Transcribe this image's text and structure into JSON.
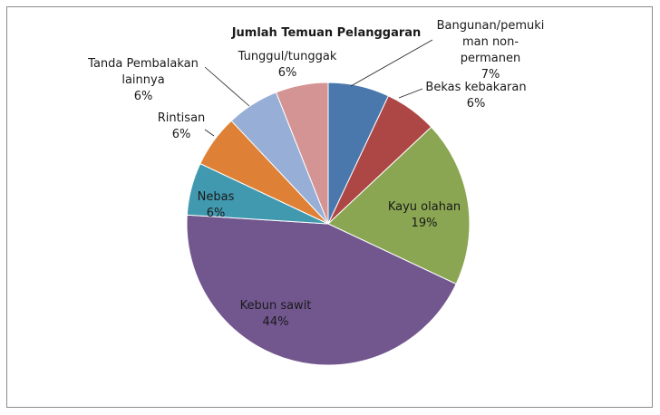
{
  "chart_data": {
    "type": "pie",
    "title": "Jumlah Temuan Pelanggaran",
    "series": [
      {
        "label": [
          "Bangunan/pemuki",
          "man non-",
          "permanen"
        ],
        "pct": "7%",
        "value": 7,
        "color": "#4a78ac"
      },
      {
        "label": [
          "Bekas kebakaran"
        ],
        "pct": "6%",
        "value": 6,
        "color": "#ad4746"
      },
      {
        "label": [
          "Kayu olahan"
        ],
        "pct": "19%",
        "value": 19,
        "color": "#8aa652"
      },
      {
        "label": [
          "Kebun sawit"
        ],
        "pct": "44%",
        "value": 44,
        "color": "#72578f"
      },
      {
        "label": [
          "Nebas"
        ],
        "pct": "6%",
        "value": 6,
        "color": "#4199b0"
      },
      {
        "label": [
          "Rintisan"
        ],
        "pct": "6%",
        "value": 6,
        "color": "#de8136"
      },
      {
        "label": [
          "Tanda Pembalakan",
          "lainnya"
        ],
        "pct": "6%",
        "value": 6,
        "color": "#97aed6"
      },
      {
        "label": [
          "Tunggul/tunggak"
        ],
        "pct": "6%",
        "value": 6,
        "color": "#d49494"
      }
    ]
  }
}
